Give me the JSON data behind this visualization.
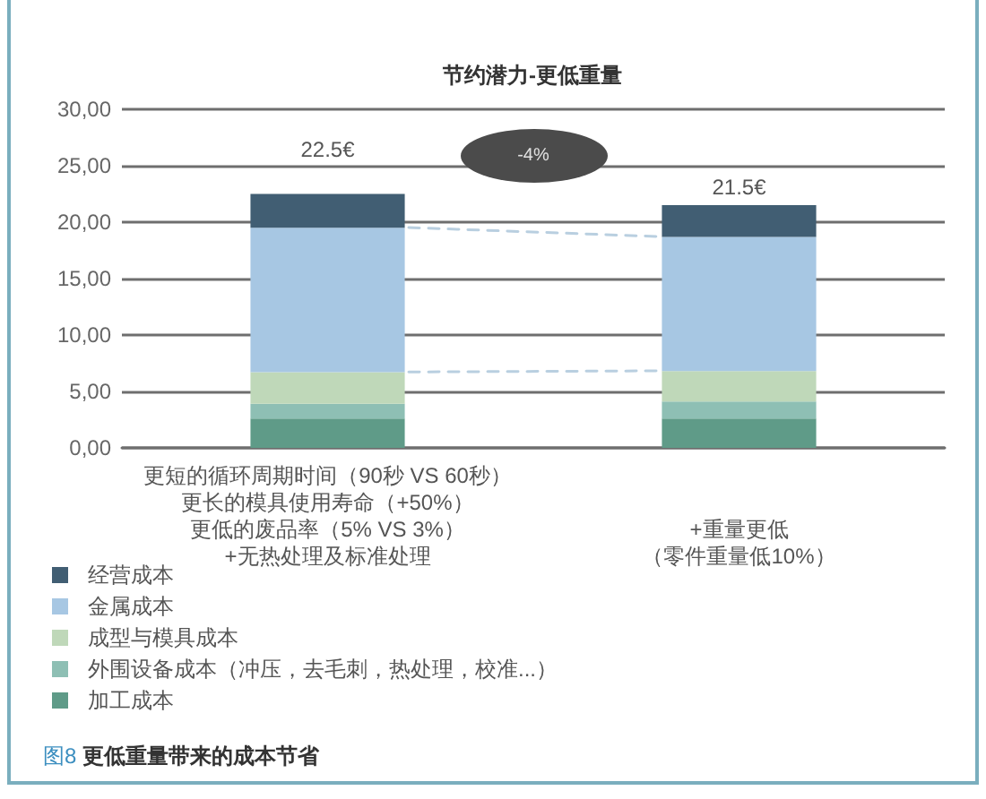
{
  "chart_data": {
    "type": "bar",
    "title": "节约潜力-更低重量",
    "categories": [
      "更短的循环周期时间（90秒 VS 60秒）更长的模具使用寿命（+50%）更低的废品率（5% VS 3%）+无热处理及标准处理",
      "+重量更低（零件重量低10%）"
    ],
    "stacked": true,
    "series": [
      {
        "name": "加工成本",
        "color": "#5f9b88",
        "values": [
          2.6,
          2.6
        ]
      },
      {
        "name": "外围设备成本（冲压，去毛刺，热处理，校准...）",
        "color": "#8ebfb4",
        "values": [
          1.3,
          1.5
        ]
      },
      {
        "name": "成型与模具成本",
        "color": "#bfd8b9",
        "values": [
          2.8,
          2.7
        ]
      },
      {
        "name": "金属成本",
        "color": "#a7c7e3",
        "values": [
          12.8,
          11.9
        ]
      },
      {
        "name": "经营成本",
        "color": "#415e73",
        "values": [
          3.0,
          2.8
        ]
      }
    ],
    "totals": [
      "22.5€",
      "21.5€"
    ],
    "ylim": [
      0,
      30
    ],
    "yticks": [
      {
        "value": 0,
        "label": "0,00"
      },
      {
        "value": 5,
        "label": "5,00"
      },
      {
        "value": 10,
        "label": "10,00"
      },
      {
        "value": 15,
        "label": "15,00"
      },
      {
        "value": 20,
        "label": "20,00"
      },
      {
        "value": 25,
        "label": "25,00"
      },
      {
        "value": 30,
        "label": "30,00"
      }
    ],
    "grid": "y",
    "legend": "bottom left",
    "annotations": [
      "-4%",
      "图8 更低重量带来的成本节省"
    ]
  }
}
